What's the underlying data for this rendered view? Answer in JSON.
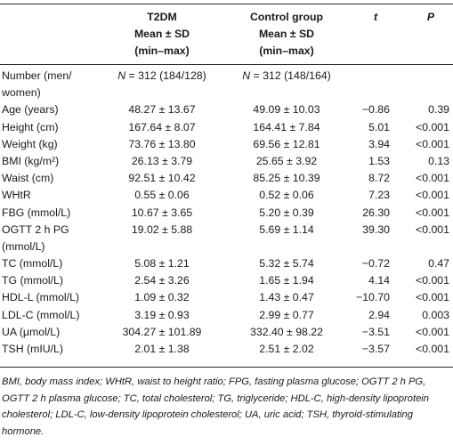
{
  "header": {
    "col_t2dm": [
      "T2DM",
      "Mean ± SD",
      "(min–max)"
    ],
    "col_control": [
      "Control group",
      "Mean ± SD",
      "(min–max)"
    ],
    "col_t": "t",
    "col_p": "P"
  },
  "rows": [
    {
      "label": "Number (men/ women)",
      "t2dm": "N = 312 (184/128)",
      "control": "N = 312 (148/164)",
      "t": "",
      "p": ""
    },
    {
      "label": "Age (years)",
      "t2dm": "48.27 ± 13.67",
      "control": "49.09 ± 10.03",
      "t": "−0.86",
      "p": "0.39"
    },
    {
      "label": "Height (cm)",
      "t2dm": "167.64 ± 8.07",
      "control": "164.41 ± 7.84",
      "t": "5.01",
      "p": "<0.001"
    },
    {
      "label": "Weight (kg)",
      "t2dm": "73.76 ± 13.80",
      "control": "69.56 ± 12.81",
      "t": "3.94",
      "p": "<0.001"
    },
    {
      "label": "BMI (kg/m²)",
      "t2dm": "26.13 ± 3.79",
      "control": "25.65 ± 3.92",
      "t": "1.53",
      "p": "0.13"
    },
    {
      "label": "Waist (cm)",
      "t2dm": "92.51 ± 10.42",
      "control": "85.25 ± 10.39",
      "t": "8.72",
      "p": "<0.001"
    },
    {
      "label": "WHtR",
      "t2dm": "0.55 ± 0.06",
      "control": "0.52 ± 0.06",
      "t": "7.23",
      "p": "<0.001"
    },
    {
      "label": "FBG (mmol/L)",
      "t2dm": "10.67 ± 3.65",
      "control": "5.20 ± 0.39",
      "t": "26.30",
      "p": "<0.001"
    },
    {
      "label": "OGTT 2 h PG (mmol/L)",
      "t2dm": "19.02 ± 5.88",
      "control": "5.69 ± 1.14",
      "t": "39.30",
      "p": "<0.001"
    },
    {
      "label": "TC (mmol/L)",
      "t2dm": "5.08 ± 1.21",
      "control": "5.32 ± 5.74",
      "t": "−0.72",
      "p": "0.47"
    },
    {
      "label": "TG (mmol/L)",
      "t2dm": "2.54 ± 3.26",
      "control": "1.65 ± 1.94",
      "t": "4.14",
      "p": "<0.001"
    },
    {
      "label": "HDL-L (mmol/L)",
      "t2dm": "1.09 ± 0.32",
      "control": "1.43 ± 0.47",
      "t": "−10.70",
      "p": "<0.001"
    },
    {
      "label": "LDL-C (mmol/L)",
      "t2dm": "3.19 ± 0.93",
      "control": "2.99 ± 0.77",
      "t": "2.94",
      "p": "0.003"
    },
    {
      "label": "UA (μmol/L)",
      "t2dm": "304.27 ± 101.89",
      "control": "332.40 ± 98.22",
      "t": "−3.51",
      "p": "<0.001"
    },
    {
      "label": "TSH (mIU/L)",
      "t2dm": "2.01 ± 1.38",
      "control": "2.51 ± 2.02",
      "t": "−3.57",
      "p": "<0.001"
    }
  ],
  "footnote": "BMI, body mass index; WHtR, waist to height ratio; FPG, fasting plasma glucose; OGTT 2 h PG, OGTT 2 h plasma glucose; TC, total cholesterol; TG, triglyceride; HDL-C, high-density lipoprotein cholesterol; LDL-C, low-density lipoprotein cholesterol; UA, uric acid; TSH, thyroid-stimulating hormone."
}
